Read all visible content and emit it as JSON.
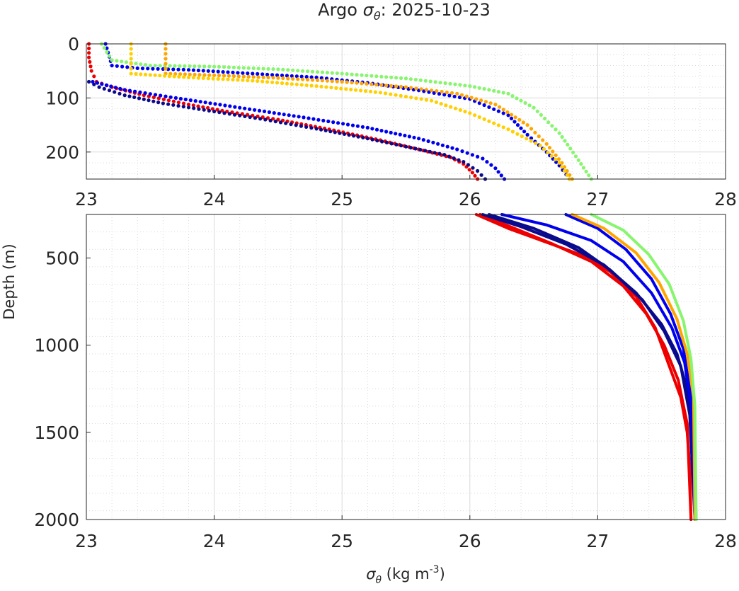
{
  "title_prefix": "Argo ",
  "title_symbol": "σ",
  "title_symbol_sub": "θ",
  "title_suffix": ": 2025-10-23",
  "xlabel_symbol": "σ",
  "xlabel_symbol_sub": "θ",
  "xlabel_units_prefix": " (kg m",
  "xlabel_units_exp": "-3",
  "xlabel_units_suffix": ")",
  "ylabel": "Depth (m)",
  "colors": {
    "red": "#ee0000",
    "navy": "#0a0a8c",
    "blue": "#0000ee",
    "green": "#88f56e",
    "orange": "#ffa500",
    "yellow": "#ffd000",
    "grid": "#d9d9d9",
    "axis": "#262626"
  },
  "chart_data": [
    {
      "type": "scatter",
      "panel": "upper",
      "xlim": [
        23,
        28
      ],
      "ylim": [
        0,
        250
      ],
      "y_reversed": true,
      "grid": true,
      "minor_grid": true,
      "xticks": [
        "23",
        "24",
        "25",
        "26",
        "27",
        "28"
      ],
      "yticks": [
        "0",
        "100",
        "200"
      ],
      "series": [
        {
          "color_key": "red",
          "sigma": [
            23.02,
            23.02,
            23.04,
            23.08,
            23.2,
            23.45,
            23.8,
            24.1,
            24.5,
            24.9,
            25.3,
            25.6,
            25.85,
            25.95,
            26.02,
            26.06
          ],
          "depth": [
            0,
            25,
            50,
            70,
            80,
            95,
            112,
            125,
            140,
            158,
            178,
            195,
            210,
            222,
            238,
            250
          ]
        },
        {
          "color_key": "navy",
          "sigma": [
            23.02,
            23.1,
            23.3,
            23.6,
            24.0,
            24.4,
            24.8,
            25.2,
            25.5,
            25.8,
            25.95,
            26.06,
            26.12
          ],
          "depth": [
            70,
            80,
            95,
            110,
            125,
            140,
            157,
            175,
            190,
            205,
            218,
            235,
            250
          ]
        },
        {
          "color_key": "blue",
          "sigma": [
            23.15,
            23.2,
            23.4,
            23.8,
            24.3,
            24.8,
            25.2,
            25.6,
            26.0,
            26.3,
            26.45,
            26.6,
            26.7,
            26.78
          ],
          "depth": [
            0,
            40,
            45,
            48,
            55,
            62,
            72,
            86,
            102,
            132,
            168,
            200,
            225,
            250
          ]
        },
        {
          "color_key": "blue",
          "sigma": [
            23.05,
            23.3,
            23.7,
            24.2,
            24.7,
            25.2,
            25.6,
            25.9,
            26.1,
            26.2,
            26.27
          ],
          "depth": [
            70,
            85,
            100,
            118,
            136,
            155,
            175,
            195,
            212,
            230,
            250
          ]
        },
        {
          "color_key": "green",
          "sigma": [
            23.12,
            23.2,
            23.5,
            24.0,
            24.5,
            25.0,
            25.5,
            26.0,
            26.3,
            26.5,
            26.7,
            26.85,
            26.95
          ],
          "depth": [
            0,
            30,
            40,
            42,
            47,
            55,
            64,
            78,
            92,
            118,
            165,
            215,
            250
          ]
        },
        {
          "color_key": "orange",
          "sigma": [
            23.62,
            23.62,
            24.0,
            24.5,
            25.0,
            25.5,
            25.9,
            26.2,
            26.45,
            26.6,
            26.72,
            26.8
          ],
          "depth": [
            0,
            55,
            58,
            63,
            70,
            80,
            92,
            112,
            150,
            185,
            220,
            250
          ]
        },
        {
          "color_key": "yellow",
          "sigma": [
            23.35,
            23.35,
            23.8,
            24.3,
            24.8,
            25.3,
            25.7,
            26.0,
            26.3,
            26.55,
            26.7,
            26.78
          ],
          "depth": [
            0,
            55,
            62,
            68,
            78,
            90,
            105,
            128,
            158,
            188,
            220,
            250
          ]
        }
      ]
    },
    {
      "type": "line",
      "panel": "lower",
      "xlim": [
        23,
        28
      ],
      "ylim": [
        250,
        2000
      ],
      "y_reversed": true,
      "grid": true,
      "minor_grid": true,
      "xticks": [
        "23",
        "24",
        "25",
        "26",
        "27",
        "28"
      ],
      "yticks": [
        "500",
        "1000",
        "1500",
        "2000"
      ],
      "series": [
        {
          "color_key": "red",
          "sigma": [
            26.05,
            26.3,
            26.6,
            26.9,
            27.1,
            27.3,
            27.45,
            27.55,
            27.65,
            27.7,
            27.72,
            27.73
          ],
          "depth": [
            250,
            330,
            410,
            490,
            580,
            720,
            900,
            1100,
            1300,
            1500,
            1700,
            2000
          ]
        },
        {
          "color_key": "red",
          "sigma": [
            26.08,
            26.35,
            26.65,
            26.95,
            27.2,
            27.38,
            27.52,
            27.63,
            27.7,
            27.73
          ],
          "depth": [
            250,
            330,
            420,
            520,
            660,
            820,
            1000,
            1200,
            1450,
            2000
          ]
        },
        {
          "color_key": "navy",
          "sigma": [
            26.1,
            26.4,
            26.75,
            27.05,
            27.3,
            27.5,
            27.62,
            27.7,
            27.75,
            27.77
          ],
          "depth": [
            250,
            320,
            420,
            540,
            700,
            880,
            1050,
            1250,
            1500,
            2000
          ]
        },
        {
          "color_key": "navy",
          "sigma": [
            26.15,
            26.5,
            26.85,
            27.1,
            27.35,
            27.52,
            27.65,
            27.72,
            27.76
          ],
          "depth": [
            250,
            330,
            440,
            570,
            740,
            920,
            1120,
            1400,
            2000
          ]
        },
        {
          "color_key": "blue",
          "sigma": [
            26.25,
            26.6,
            26.95,
            27.2,
            27.42,
            27.58,
            27.68,
            27.74,
            27.76
          ],
          "depth": [
            250,
            310,
            400,
            520,
            700,
            900,
            1100,
            1400,
            2000
          ]
        },
        {
          "color_key": "blue",
          "sigma": [
            26.75,
            27.0,
            27.22,
            27.42,
            27.57,
            27.67,
            27.73,
            27.76
          ],
          "depth": [
            250,
            330,
            450,
            620,
            820,
            1020,
            1300,
            2000
          ]
        },
        {
          "color_key": "orange",
          "sigma": [
            26.8,
            27.05,
            27.3,
            27.48,
            27.62,
            27.7,
            27.75,
            27.76
          ],
          "depth": [
            250,
            330,
            470,
            640,
            850,
            1050,
            1300,
            2000
          ]
        },
        {
          "color_key": "green",
          "sigma": [
            26.95,
            27.2,
            27.4,
            27.56,
            27.67,
            27.73,
            27.76,
            27.77
          ],
          "depth": [
            250,
            340,
            480,
            650,
            860,
            1080,
            1350,
            2000
          ]
        }
      ]
    }
  ]
}
